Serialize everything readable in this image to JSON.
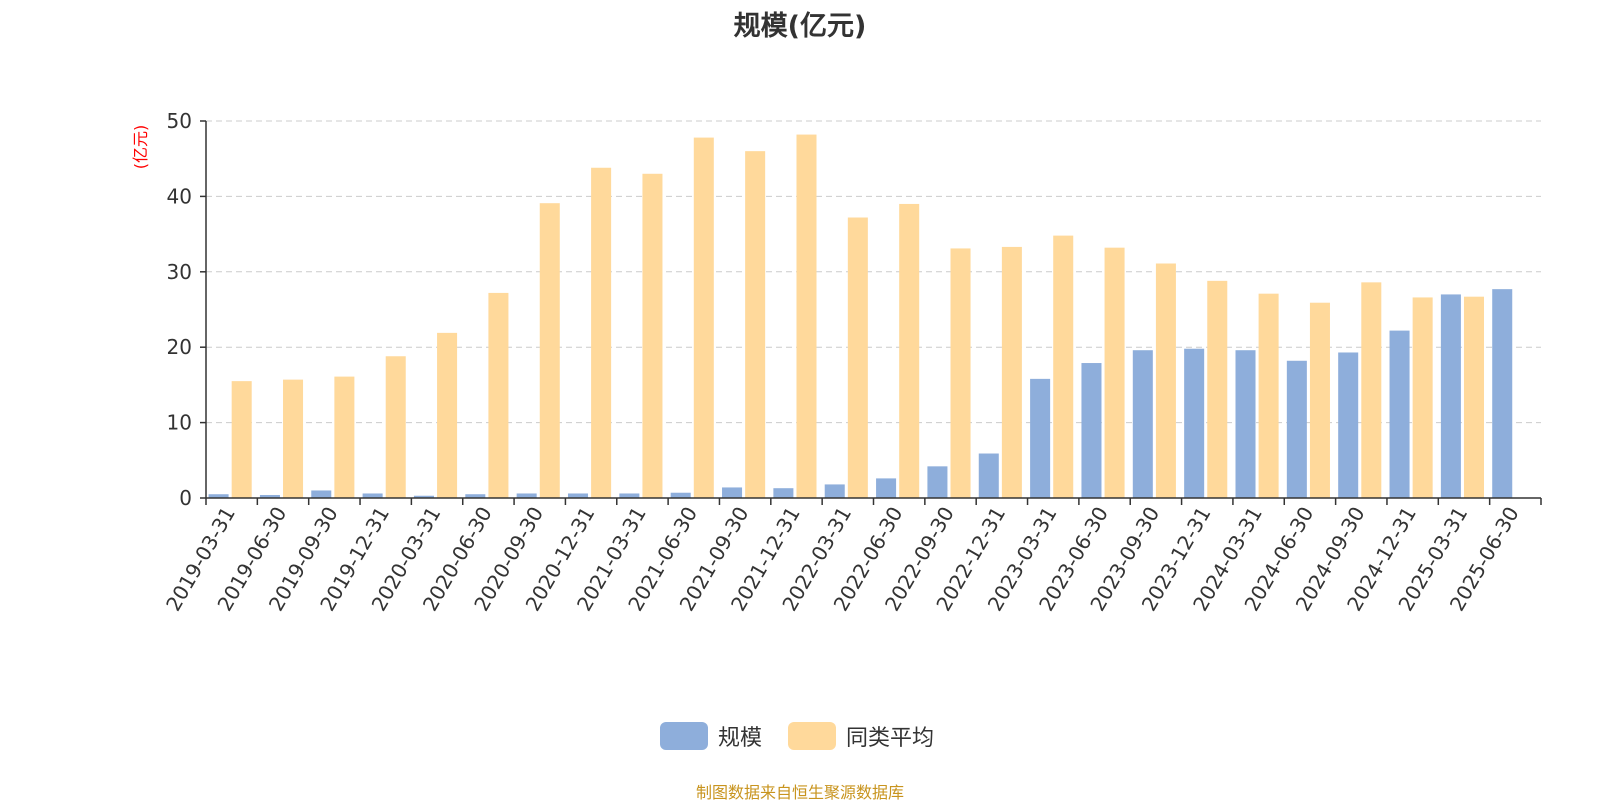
{
  "chart_data": {
    "type": "bar",
    "title": "规模(亿元)",
    "ylabel": "(亿元)",
    "ylim": [
      0,
      50
    ],
    "yticks": [
      0,
      10,
      20,
      30,
      40,
      50
    ],
    "grid": true,
    "legend_position": "bottom",
    "categories": [
      "2019-03-31",
      "2019-06-30",
      "2019-09-30",
      "2019-12-31",
      "2020-03-31",
      "2020-06-30",
      "2020-09-30",
      "2020-12-31",
      "2021-03-31",
      "2021-06-30",
      "2021-09-30",
      "2021-12-31",
      "2022-03-31",
      "2022-06-30",
      "2022-09-30",
      "2022-12-31",
      "2023-03-31",
      "2023-06-30",
      "2023-09-30",
      "2023-12-31",
      "2024-03-31",
      "2024-06-30",
      "2024-09-30",
      "2024-12-31",
      "2025-03-31",
      "2025-06-30"
    ],
    "series": [
      {
        "name": "规模",
        "color": "#8eaedb",
        "values": [
          0.5,
          0.4,
          1.0,
          0.6,
          0.3,
          0.5,
          0.6,
          0.6,
          0.6,
          0.7,
          1.4,
          1.3,
          1.8,
          2.6,
          4.2,
          5.9,
          15.8,
          17.9,
          19.6,
          19.8,
          19.6,
          18.2,
          19.3,
          22.2,
          27.0,
          27.7
        ]
      },
      {
        "name": "同类平均",
        "color": "#ffd99b",
        "values": [
          15.5,
          15.7,
          16.1,
          18.8,
          21.9,
          27.2,
          39.1,
          43.8,
          43.0,
          47.8,
          46.0,
          48.2,
          37.2,
          39.0,
          33.1,
          33.3,
          34.8,
          33.2,
          31.1,
          28.8,
          27.1,
          25.9,
          28.6,
          26.6,
          26.7,
          null
        ]
      }
    ]
  },
  "legend": {
    "series1_label": "规模",
    "series2_label": "同类平均"
  },
  "source_note": "制图数据来自恒生聚源数据库",
  "colors": {
    "axis": "#333333",
    "grid": "#cccccc",
    "ylabel": "#ff0000",
    "title": "#333333",
    "source": "#c8941e"
  }
}
